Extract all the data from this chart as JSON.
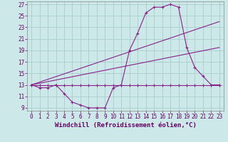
{
  "xlabel": "Windchill (Refroidissement éolien,°C)",
  "background_color": "#cce8e8",
  "grid_color": "#aacccc",
  "line_color": "#882288",
  "xlim": [
    -0.5,
    23.5
  ],
  "ylim": [
    8.5,
    27.5
  ],
  "xticks": [
    0,
    1,
    2,
    3,
    4,
    5,
    6,
    7,
    8,
    9,
    10,
    11,
    12,
    13,
    14,
    15,
    16,
    17,
    18,
    19,
    20,
    21,
    22,
    23
  ],
  "yticks": [
    9,
    11,
    13,
    15,
    17,
    19,
    21,
    23,
    25,
    27
  ],
  "line1_x": [
    0,
    1,
    2,
    3,
    4,
    5,
    6,
    7,
    8,
    9,
    10,
    11,
    12,
    13,
    14,
    15,
    16,
    17,
    18,
    19,
    20,
    21,
    22,
    23
  ],
  "line1_y": [
    13,
    12.5,
    12.5,
    13,
    11.5,
    10.0,
    9.5,
    9.0,
    9.0,
    9.0,
    12.5,
    13.0,
    19.0,
    22.0,
    25.5,
    26.5,
    26.5,
    27.0,
    26.5,
    19.5,
    16.0,
    14.5,
    13.0,
    13.0
  ],
  "line2_x": [
    0,
    1,
    2,
    3,
    4,
    5,
    6,
    7,
    8,
    9,
    10,
    11,
    12,
    13,
    14,
    15,
    16,
    17,
    18,
    19,
    20,
    21,
    22,
    23
  ],
  "line2_y": [
    13,
    13,
    13,
    13,
    13,
    13,
    13,
    13,
    13,
    13,
    13,
    13,
    13,
    13,
    13,
    13,
    13,
    13,
    13,
    13,
    13,
    13,
    13,
    13
  ],
  "line3_x": [
    0,
    23
  ],
  "line3_y": [
    13,
    24.0
  ],
  "line4_x": [
    0,
    23
  ],
  "line4_y": [
    13,
    19.5
  ],
  "fontsize_label": 6.5,
  "fontsize_tick": 5.5
}
